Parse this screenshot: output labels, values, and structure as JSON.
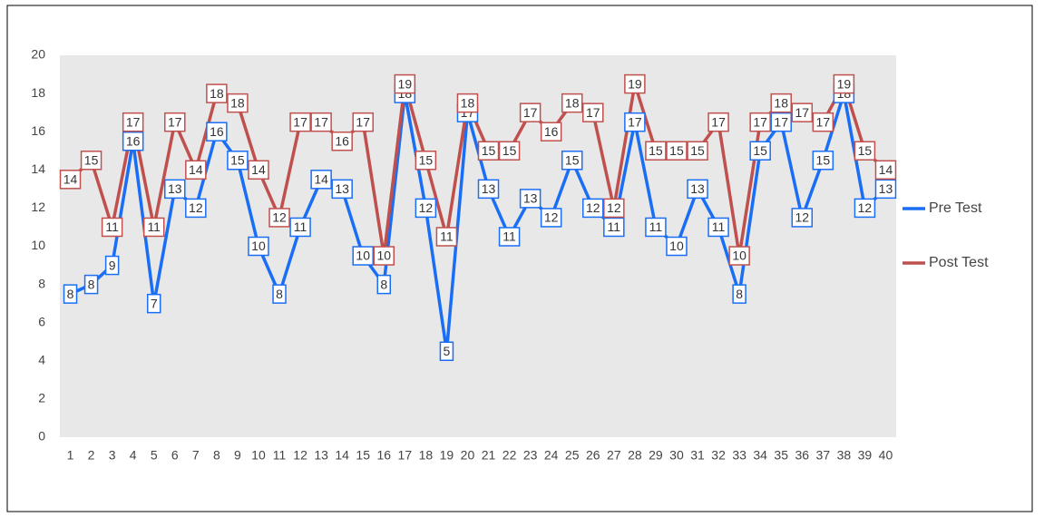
{
  "chart_data": {
    "type": "line",
    "categories": [
      1,
      2,
      3,
      4,
      5,
      6,
      7,
      8,
      9,
      10,
      11,
      12,
      13,
      14,
      15,
      16,
      17,
      18,
      19,
      20,
      21,
      22,
      23,
      24,
      25,
      26,
      27,
      28,
      29,
      30,
      31,
      32,
      33,
      34,
      35,
      36,
      37,
      38,
      39,
      40
    ],
    "series": [
      {
        "name": "Pre Test",
        "color": "#1a6ef5",
        "values": [
          7.5,
          8,
          9,
          15.5,
          7,
          13,
          12,
          16,
          14.5,
          10,
          7.5,
          11,
          13.5,
          13,
          9.5,
          8,
          18,
          12,
          4.5,
          17,
          13,
          10.5,
          12.5,
          11.5,
          14.5,
          12,
          11,
          16.5,
          11,
          10,
          13,
          11,
          7.5,
          15,
          16.5,
          11.5,
          14.5,
          18,
          12,
          13
        ],
        "value_labels": [
          "8",
          "8",
          "9",
          "16",
          "7",
          "13",
          "12",
          "16",
          "15",
          "10",
          "8",
          "11",
          "14",
          "13",
          "10",
          "8",
          "18",
          "12",
          "5",
          "17",
          "13",
          "11",
          "13",
          "12",
          "15",
          "12",
          "11",
          "17",
          "11",
          "10",
          "13",
          "11",
          "8",
          "15",
          "17",
          "12",
          "15",
          "18",
          "12",
          "13"
        ]
      },
      {
        "name": "Post Test",
        "color": "#c0504d",
        "values": [
          13.5,
          14.5,
          11,
          16.5,
          11,
          16.5,
          14,
          18,
          17.5,
          14,
          11.5,
          16.5,
          16.5,
          15.5,
          16.5,
          9.5,
          18.5,
          14.5,
          10.5,
          17.5,
          15,
          15,
          17,
          16,
          17.5,
          17,
          12,
          18.5,
          15,
          15,
          15,
          16.5,
          9.5,
          16.5,
          17.5,
          17,
          16.5,
          18.5,
          15,
          14
        ],
        "value_labels": [
          "14",
          "15",
          "11",
          "17",
          "11",
          "17",
          "14",
          "18",
          "18",
          "14",
          "12",
          "17",
          "17",
          "16",
          "17",
          "10",
          "19",
          "15",
          "11",
          "18",
          "15",
          "15",
          "17",
          "16",
          "18",
          "17",
          "12",
          "19",
          "15",
          "15",
          "15",
          "17",
          "10",
          "17",
          "18",
          "17",
          "17",
          "19",
          "15",
          "14"
        ]
      }
    ],
    "ylim": [
      0,
      20
    ],
    "yticks": [
      0,
      2,
      4,
      6,
      8,
      10,
      12,
      14,
      16,
      18,
      20
    ],
    "grid": false,
    "legend": "right"
  }
}
